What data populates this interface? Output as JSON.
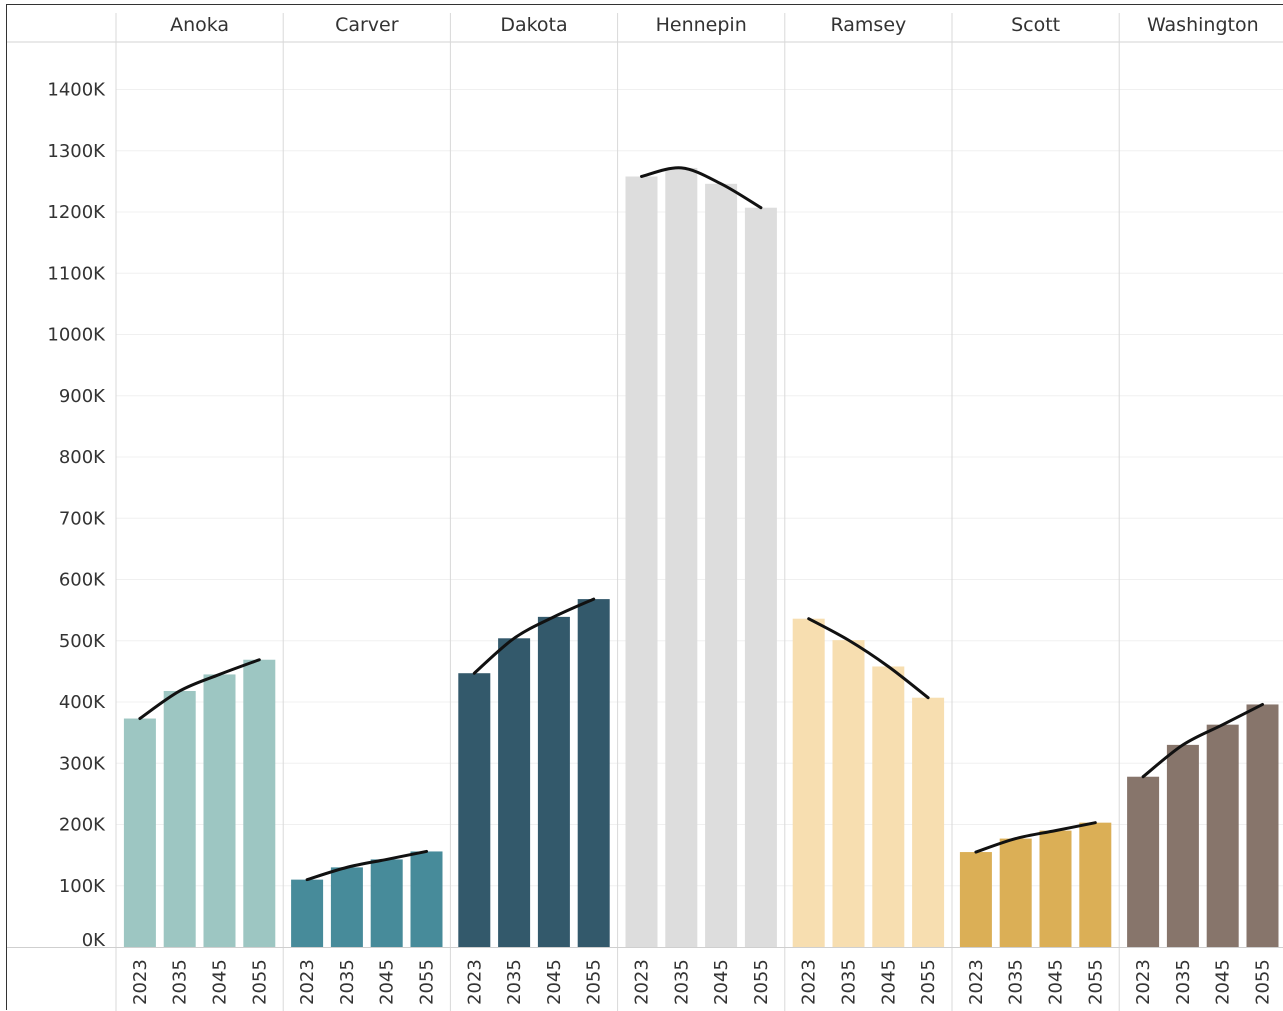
{
  "chart_data": {
    "type": "bar",
    "title": "",
    "xlabel": "",
    "ylabel": "",
    "ylim": [
      0,
      1500000
    ],
    "yticks": [
      0,
      100000,
      200000,
      300000,
      400000,
      500000,
      600000,
      700000,
      800000,
      900000,
      1000000,
      1100000,
      1200000,
      1300000,
      1400000
    ],
    "ytick_labels": [
      "0K",
      "100K",
      "200K",
      "300K",
      "400K",
      "500K",
      "600K",
      "700K",
      "800K",
      "900K",
      "1000K",
      "1100K",
      "1200K",
      "1300K",
      "1400K"
    ],
    "categories": [
      "2023",
      "2035",
      "2045",
      "2055"
    ],
    "grid": true,
    "trend_line": {
      "color": "#111111"
    },
    "panels": [
      {
        "name": "Anoka",
        "color": "#9dc6c2",
        "values": [
          373000,
          418000,
          445000,
          469000
        ]
      },
      {
        "name": "Carver",
        "color": "#478b9a",
        "values": [
          110000,
          130000,
          143000,
          156000
        ]
      },
      {
        "name": "Dakota",
        "color": "#33596b",
        "values": [
          447000,
          504000,
          539000,
          568000
        ]
      },
      {
        "name": "Hennepin",
        "color": "#dddddd",
        "values": [
          1258000,
          1272000,
          1246000,
          1207000
        ]
      },
      {
        "name": "Ramsey",
        "color": "#f7deb0",
        "values": [
          536000,
          501000,
          458000,
          407000
        ]
      },
      {
        "name": "Scott",
        "color": "#dbaf56",
        "values": [
          155000,
          177000,
          190000,
          203000
        ]
      },
      {
        "name": "Washington",
        "color": "#87756b",
        "values": [
          278000,
          330000,
          363000,
          396000
        ]
      }
    ]
  }
}
